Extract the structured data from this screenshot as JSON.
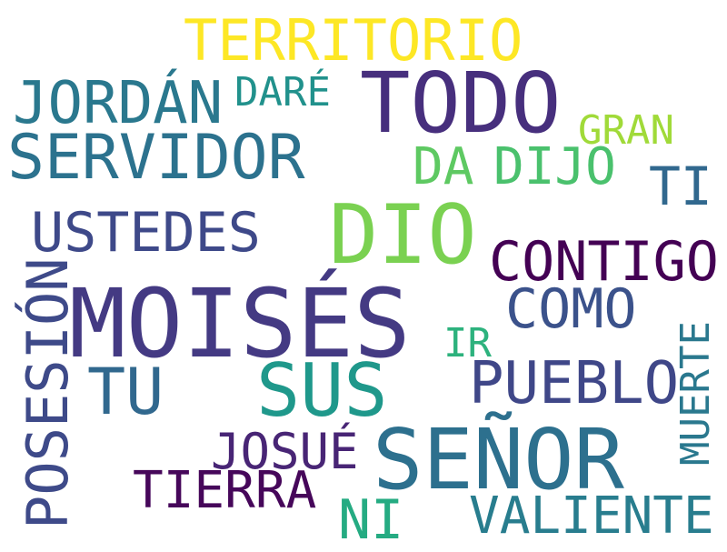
{
  "words": [
    {
      "text": "TERRITORIO",
      "color": "#fde725"
    },
    {
      "text": "TODO",
      "color": "#472f7d"
    },
    {
      "text": "JORDÁN",
      "color": "#2a788e"
    },
    {
      "text": "DARÉ",
      "color": "#21918c"
    },
    {
      "text": "GRAN",
      "color": "#a0da39"
    },
    {
      "text": "SERVIDOR",
      "color": "#2c728e"
    },
    {
      "text": "DA",
      "color": "#5ec962"
    },
    {
      "text": "DIJO",
      "color": "#4ac16d"
    },
    {
      "text": "TI",
      "color": "#31688e"
    },
    {
      "text": "USTEDES",
      "color": "#3e4989"
    },
    {
      "text": "DIO",
      "color": "#7ad151"
    },
    {
      "text": "CONTIGO",
      "color": "#440154"
    },
    {
      "text": "MOISÉS",
      "color": "#443a83"
    },
    {
      "text": "COMO",
      "color": "#3b528b"
    },
    {
      "text": "POSESIÓN",
      "color": "#3e4a89"
    },
    {
      "text": "IR",
      "color": "#2db27d"
    },
    {
      "text": "SUS",
      "color": "#1f988b"
    },
    {
      "text": "TU",
      "color": "#31688e"
    },
    {
      "text": "PUEBLO",
      "color": "#3f4788"
    },
    {
      "text": "MUERTE",
      "color": "#2a788e"
    },
    {
      "text": "JOSUÉ",
      "color": "#482575"
    },
    {
      "text": "SEÑOR",
      "color": "#2d708e"
    },
    {
      "text": "TIERRA",
      "color": "#46075a"
    },
    {
      "text": "NI",
      "color": "#25ab82"
    },
    {
      "text": "VALIENTE",
      "color": "#287d8e"
    }
  ]
}
